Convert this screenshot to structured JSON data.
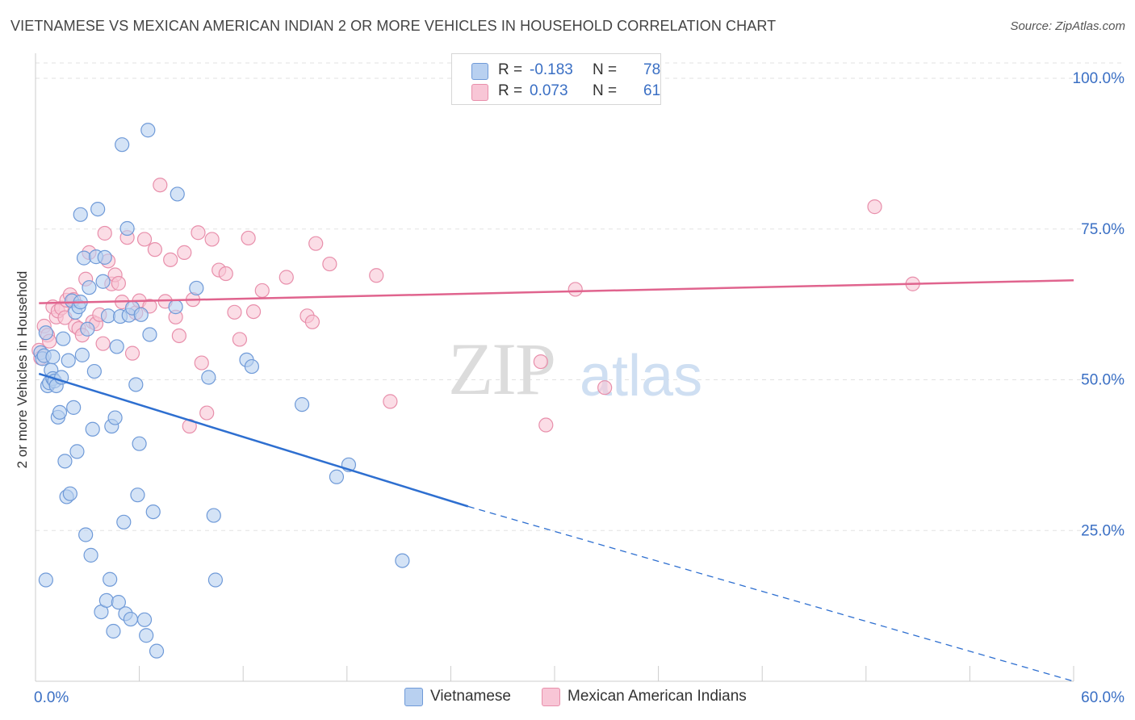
{
  "title": "VIETNAMESE VS MEXICAN AMERICAN INDIAN 2 OR MORE VEHICLES IN HOUSEHOLD CORRELATION CHART",
  "source": "Source: ZipAtlas.com",
  "watermark": {
    "zip": "ZIP",
    "atlas": "atlas"
  },
  "legend": {
    "rows": [
      {
        "r_label": "R =",
        "r_value": "-0.183",
        "n_label": "N =",
        "n_value": "78"
      },
      {
        "r_label": "R =",
        "r_value": "0.073",
        "n_label": "N =",
        "n_value": "61"
      }
    ]
  },
  "colors": {
    "blue_fill": "#b8d0f0",
    "blue_stroke": "#6f9ad8",
    "blue_line": "#2e6fd0",
    "pink_fill": "#f8c6d6",
    "pink_stroke": "#e88fab",
    "pink_line": "#e0648e",
    "grid": "#e2e2e2",
    "tick_label": "#3a6fc4"
  },
  "chart_data": {
    "type": "scatter",
    "xlabel": "",
    "ylabel": "2 or more Vehicles in Household",
    "x_range": [
      0,
      60
    ],
    "y_range": [
      0,
      100
    ],
    "x_tick_labels": [
      "0.0%",
      "60.0%"
    ],
    "y_ticks": [
      25,
      50,
      75,
      100
    ],
    "y_tick_labels": [
      "25.0%",
      "50.0%",
      "75.0%",
      "100.0%"
    ],
    "grid": true,
    "legend_placement": "bottom",
    "series": [
      {
        "name": "Vietnamese",
        "r": -0.183,
        "n": 78,
        "trend": {
          "x0": 0.2,
          "y0": 51.0,
          "x1": 25,
          "y1": 29.0,
          "dashed_to": 60,
          "dashed_y": 0.0
        },
        "points": [
          [
            0.3,
            54.5
          ],
          [
            0.4,
            53.5
          ],
          [
            0.5,
            54.0
          ],
          [
            0.6,
            57.8
          ],
          [
            0.7,
            49.0
          ],
          [
            0.8,
            49.5
          ],
          [
            0.9,
            51.6
          ],
          [
            1.0,
            50.2
          ],
          [
            1.1,
            49.8
          ],
          [
            1.2,
            49.0
          ],
          [
            1.3,
            43.8
          ],
          [
            1.4,
            44.6
          ],
          [
            1.5,
            50.4
          ],
          [
            1.6,
            56.8
          ],
          [
            1.7,
            36.5
          ],
          [
            1.8,
            30.6
          ],
          [
            1.9,
            53.2
          ],
          [
            2.0,
            31.1
          ],
          [
            2.1,
            63.1
          ],
          [
            2.2,
            45.4
          ],
          [
            2.3,
            61.2
          ],
          [
            2.4,
            38.1
          ],
          [
            2.5,
            62.1
          ],
          [
            2.6,
            77.4
          ],
          [
            2.7,
            54.1
          ],
          [
            2.8,
            70.2
          ],
          [
            2.9,
            24.3
          ],
          [
            3.0,
            58.4
          ],
          [
            3.1,
            65.3
          ],
          [
            3.2,
            20.9
          ],
          [
            3.3,
            41.8
          ],
          [
            3.4,
            51.4
          ],
          [
            3.5,
            70.4
          ],
          [
            3.6,
            78.3
          ],
          [
            3.8,
            11.5
          ],
          [
            3.9,
            66.3
          ],
          [
            4.0,
            70.3
          ],
          [
            4.1,
            13.4
          ],
          [
            4.2,
            60.6
          ],
          [
            4.3,
            16.9
          ],
          [
            4.4,
            42.3
          ],
          [
            4.5,
            8.3
          ],
          [
            4.6,
            43.7
          ],
          [
            4.7,
            55.5
          ],
          [
            4.8,
            13.1
          ],
          [
            4.9,
            60.5
          ],
          [
            5.0,
            89.0
          ],
          [
            5.1,
            26.4
          ],
          [
            5.2,
            11.2
          ],
          [
            5.3,
            75.1
          ],
          [
            5.4,
            60.7
          ],
          [
            5.5,
            10.3
          ],
          [
            5.6,
            61.9
          ],
          [
            5.8,
            49.2
          ],
          [
            5.9,
            30.9
          ],
          [
            6.0,
            39.4
          ],
          [
            6.1,
            60.8
          ],
          [
            6.3,
            10.2
          ],
          [
            6.4,
            7.6
          ],
          [
            6.5,
            91.4
          ],
          [
            6.6,
            57.5
          ],
          [
            6.8,
            28.1
          ],
          [
            7.0,
            5.0
          ],
          [
            8.1,
            62.1
          ],
          [
            8.2,
            80.8
          ],
          [
            9.3,
            65.2
          ],
          [
            10.0,
            50.4
          ],
          [
            10.3,
            27.5
          ],
          [
            10.4,
            16.8
          ],
          [
            12.2,
            53.3
          ],
          [
            12.5,
            52.2
          ],
          [
            15.4,
            45.9
          ],
          [
            17.4,
            33.9
          ],
          [
            18.1,
            35.9
          ],
          [
            21.2,
            20.0
          ],
          [
            0.6,
            16.8
          ],
          [
            2.6,
            62.9
          ],
          [
            1.0,
            53.8
          ]
        ]
      },
      {
        "name": "Mexican American Indians",
        "r": 0.073,
        "n": 61,
        "trend": {
          "x0": 0.2,
          "y0": 62.7,
          "x1": 60,
          "y1": 66.5
        },
        "points": [
          [
            0.2,
            54.9
          ],
          [
            0.3,
            53.6
          ],
          [
            0.5,
            58.9
          ],
          [
            0.7,
            57.4
          ],
          [
            0.8,
            56.4
          ],
          [
            1.0,
            62.1
          ],
          [
            1.2,
            60.4
          ],
          [
            1.3,
            61.4
          ],
          [
            1.5,
            61.9
          ],
          [
            1.7,
            60.3
          ],
          [
            1.8,
            63.2
          ],
          [
            2.0,
            64.1
          ],
          [
            2.2,
            63.3
          ],
          [
            2.3,
            58.9
          ],
          [
            2.5,
            58.5
          ],
          [
            2.7,
            57.4
          ],
          [
            2.9,
            66.7
          ],
          [
            3.1,
            71.1
          ],
          [
            3.3,
            59.6
          ],
          [
            3.5,
            59.3
          ],
          [
            3.7,
            60.8
          ],
          [
            3.9,
            56.0
          ],
          [
            4.0,
            74.3
          ],
          [
            4.2,
            69.7
          ],
          [
            4.4,
            65.9
          ],
          [
            4.6,
            67.4
          ],
          [
            4.8,
            66.0
          ],
          [
            5.0,
            62.9
          ],
          [
            5.3,
            73.6
          ],
          [
            5.6,
            54.4
          ],
          [
            5.8,
            61.1
          ],
          [
            6.0,
            63.1
          ],
          [
            6.3,
            73.3
          ],
          [
            6.6,
            62.2
          ],
          [
            6.9,
            71.6
          ],
          [
            7.2,
            82.3
          ],
          [
            7.5,
            63.0
          ],
          [
            7.8,
            69.9
          ],
          [
            8.1,
            60.4
          ],
          [
            8.3,
            57.3
          ],
          [
            8.6,
            71.1
          ],
          [
            8.9,
            42.3
          ],
          [
            9.1,
            63.3
          ],
          [
            9.4,
            74.4
          ],
          [
            9.6,
            52.8
          ],
          [
            9.9,
            44.5
          ],
          [
            10.2,
            73.3
          ],
          [
            10.6,
            68.2
          ],
          [
            11.0,
            67.6
          ],
          [
            11.5,
            61.2
          ],
          [
            11.8,
            56.7
          ],
          [
            12.3,
            73.5
          ],
          [
            12.6,
            61.3
          ],
          [
            13.1,
            64.8
          ],
          [
            14.5,
            67.0
          ],
          [
            15.7,
            60.6
          ],
          [
            16.0,
            59.6
          ],
          [
            16.2,
            72.6
          ],
          [
            17.0,
            69.2
          ],
          [
            19.7,
            67.3
          ],
          [
            20.5,
            46.4
          ]
        ]
      },
      {
        "name": "Mexican American Indians (far)",
        "points": [
          [
            29.2,
            53.0
          ],
          [
            29.5,
            42.5
          ],
          [
            31.2,
            65.0
          ],
          [
            32.9,
            48.7
          ],
          [
            48.5,
            78.7
          ],
          [
            50.7,
            65.9
          ]
        ]
      }
    ]
  },
  "bottom_legend": {
    "items": [
      {
        "label": "Vietnamese"
      },
      {
        "label": "Mexican American Indians"
      }
    ]
  }
}
